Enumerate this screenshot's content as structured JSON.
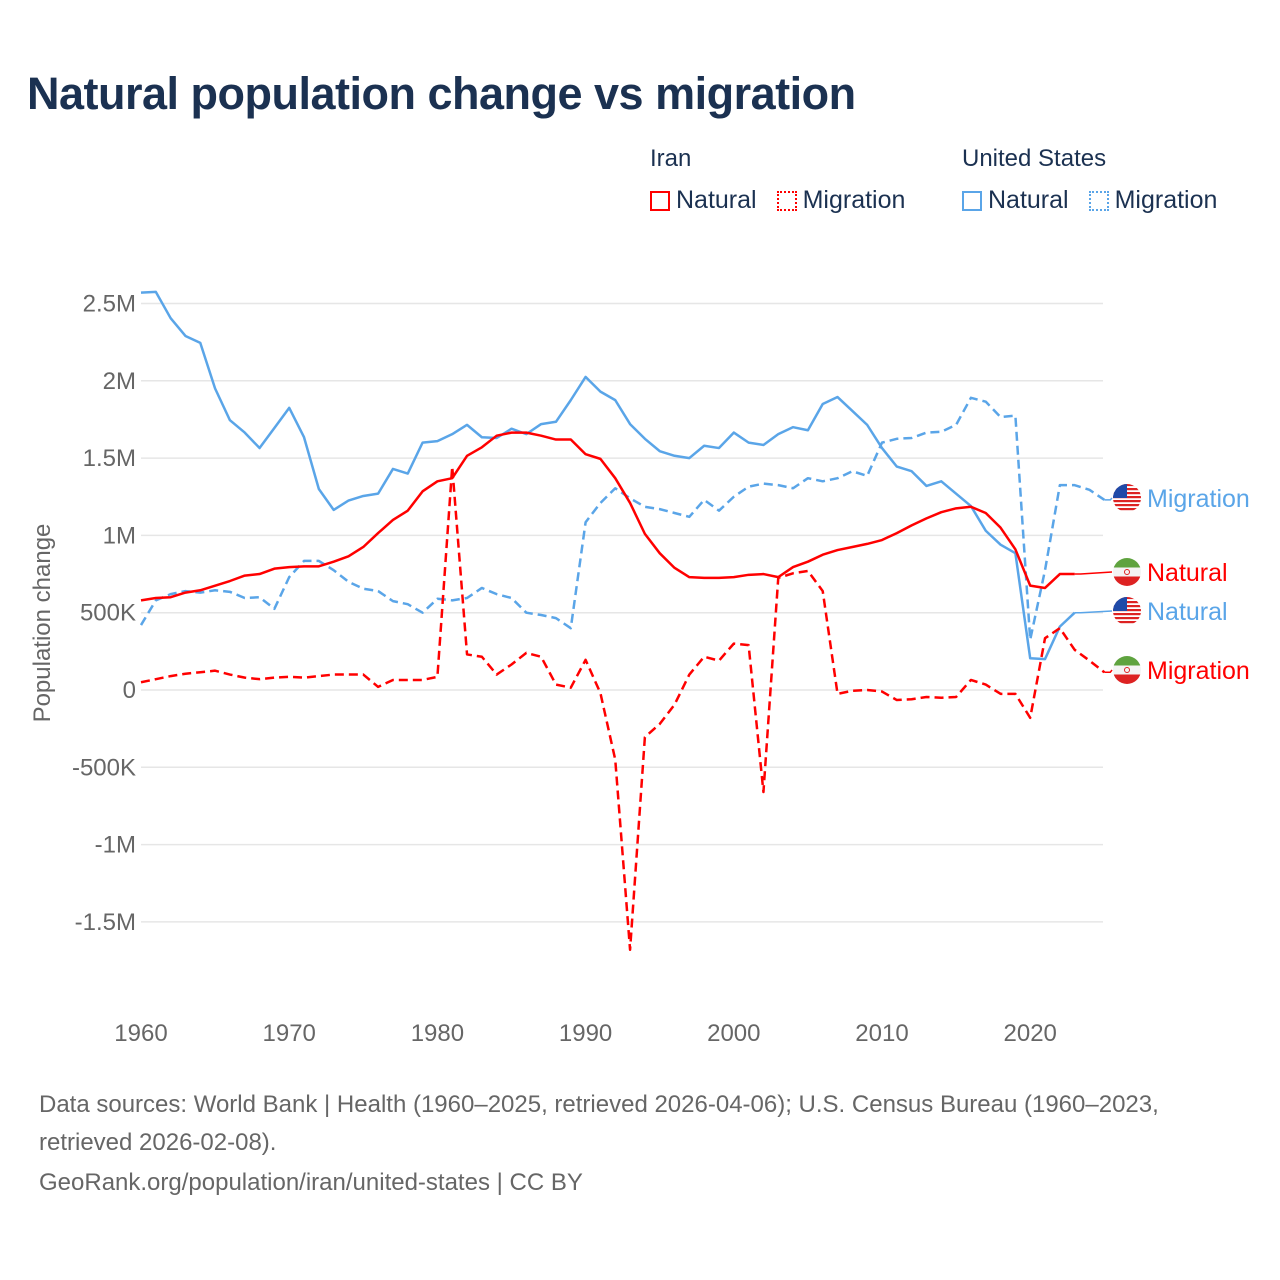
{
  "title": "Natural population change vs migration",
  "legend": {
    "groups": [
      {
        "name": "Iran",
        "items": [
          {
            "label": "Natural",
            "style": "solid",
            "color": "#ff0000"
          },
          {
            "label": "Migration",
            "style": "dotted",
            "color": "#ff0000"
          }
        ]
      },
      {
        "name": "United States",
        "items": [
          {
            "label": "Natural",
            "style": "solid",
            "color": "#5aa5e8"
          },
          {
            "label": "Migration",
            "style": "dotted",
            "color": "#5aa5e8"
          }
        ]
      }
    ]
  },
  "chart_data": {
    "type": "line",
    "title": "Natural population change vs migration",
    "xlabel": "",
    "ylabel": "Population change",
    "xlim": [
      1960,
      2025
    ],
    "ylim": [
      -2000000,
      2600000
    ],
    "x_ticks": [
      1960,
      1970,
      1980,
      1990,
      2000,
      2010,
      2020
    ],
    "x_tick_labels": [
      "1960",
      "1970",
      "1980",
      "1990",
      "2000",
      "2010",
      "2020"
    ],
    "y_ticks": [
      -1500000,
      -1000000,
      -500000,
      0,
      500000,
      1000000,
      1500000,
      2000000,
      2500000
    ],
    "y_tick_labels": [
      "-1.5M",
      "-1M",
      "-500K",
      "0",
      "500K",
      "1M",
      "1.5M",
      "2M",
      "2.5M"
    ],
    "grid": true,
    "series": [
      {
        "name": "United States Natural",
        "end_label": "Natural",
        "country": "us",
        "color": "#5aa5e8",
        "dash": false,
        "start_year": 1960,
        "values_k": [
          2570,
          2575,
          2405,
          2290,
          2245,
          1950,
          1745,
          1665,
          1565,
          1695,
          1825,
          1635,
          1300,
          1165,
          1225,
          1255,
          1270,
          1430,
          1400,
          1600,
          1610,
          1655,
          1715,
          1635,
          1630,
          1690,
          1655,
          1720,
          1735,
          1875,
          2025,
          1930,
          1875,
          1720,
          1625,
          1545,
          1515,
          1500,
          1580,
          1565,
          1665,
          1600,
          1585,
          1655,
          1700,
          1680,
          1850,
          1895,
          1805,
          1715,
          1565,
          1445,
          1415,
          1320,
          1350,
          1270,
          1190,
          1030,
          940,
          885,
          205,
          200,
          410,
          500
        ]
      },
      {
        "name": "United States Migration",
        "end_label": "Migration",
        "country": "us",
        "color": "#5aa5e8",
        "dash": true,
        "start_year": 1960,
        "values_k": [
          420,
          580,
          620,
          640,
          630,
          645,
          635,
          595,
          600,
          525,
          730,
          835,
          835,
          775,
          700,
          655,
          640,
          575,
          555,
          500,
          590,
          580,
          595,
          660,
          620,
          595,
          500,
          485,
          465,
          400,
          1085,
          1210,
          1305,
          1240,
          1185,
          1170,
          1145,
          1120,
          1230,
          1160,
          1250,
          1315,
          1335,
          1325,
          1305,
          1370,
          1350,
          1370,
          1415,
          1385,
          1600,
          1625,
          1630,
          1665,
          1670,
          1715,
          1890,
          1865,
          1765,
          1775,
          325,
          775,
          1325,
          1325,
          1295,
          1230
        ]
      },
      {
        "name": "Iran Natural",
        "end_label": "Natural",
        "country": "iran",
        "color": "#ff0000",
        "dash": false,
        "start_year": 1960,
        "values_k": [
          580,
          595,
          600,
          630,
          645,
          675,
          705,
          740,
          750,
          785,
          795,
          800,
          800,
          830,
          865,
          925,
          1015,
          1100,
          1160,
          1285,
          1350,
          1370,
          1515,
          1570,
          1645,
          1665,
          1665,
          1645,
          1620,
          1620,
          1525,
          1495,
          1370,
          1210,
          1010,
          885,
          790,
          730,
          725,
          725,
          730,
          745,
          750,
          730,
          795,
          830,
          875,
          905,
          925,
          945,
          970,
          1015,
          1065,
          1110,
          1150,
          1175,
          1185,
          1145,
          1050,
          910,
          675,
          660,
          750,
          750
        ]
      },
      {
        "name": "Iran Migration",
        "end_label": "Migration",
        "country": "iran",
        "color": "#ff0000",
        "dash": true,
        "start_year": 1960,
        "values_k": [
          50,
          70,
          90,
          105,
          115,
          125,
          100,
          80,
          70,
          80,
          85,
          80,
          90,
          100,
          100,
          100,
          20,
          65,
          65,
          65,
          85,
          1445,
          230,
          215,
          100,
          165,
          240,
          215,
          35,
          15,
          195,
          -20,
          -450,
          -1680,
          -305,
          -220,
          -95,
          100,
          215,
          190,
          300,
          290,
          -660,
          725,
          755,
          770,
          640,
          -25,
          -5,
          0,
          -10,
          -65,
          -60,
          -45,
          -50,
          -45,
          65,
          35,
          -25,
          -25,
          -180,
          335,
          400,
          260,
          190,
          115
        ]
      }
    ]
  },
  "footer": {
    "sources": "Data sources: World Bank | Health (1960–2025, retrieved 2026-04-06); U.S. Census Bureau (1960–2023, retrieved 2026-02-08).",
    "credit": "GeoRank.org/population/iran/united-states | CC BY"
  }
}
